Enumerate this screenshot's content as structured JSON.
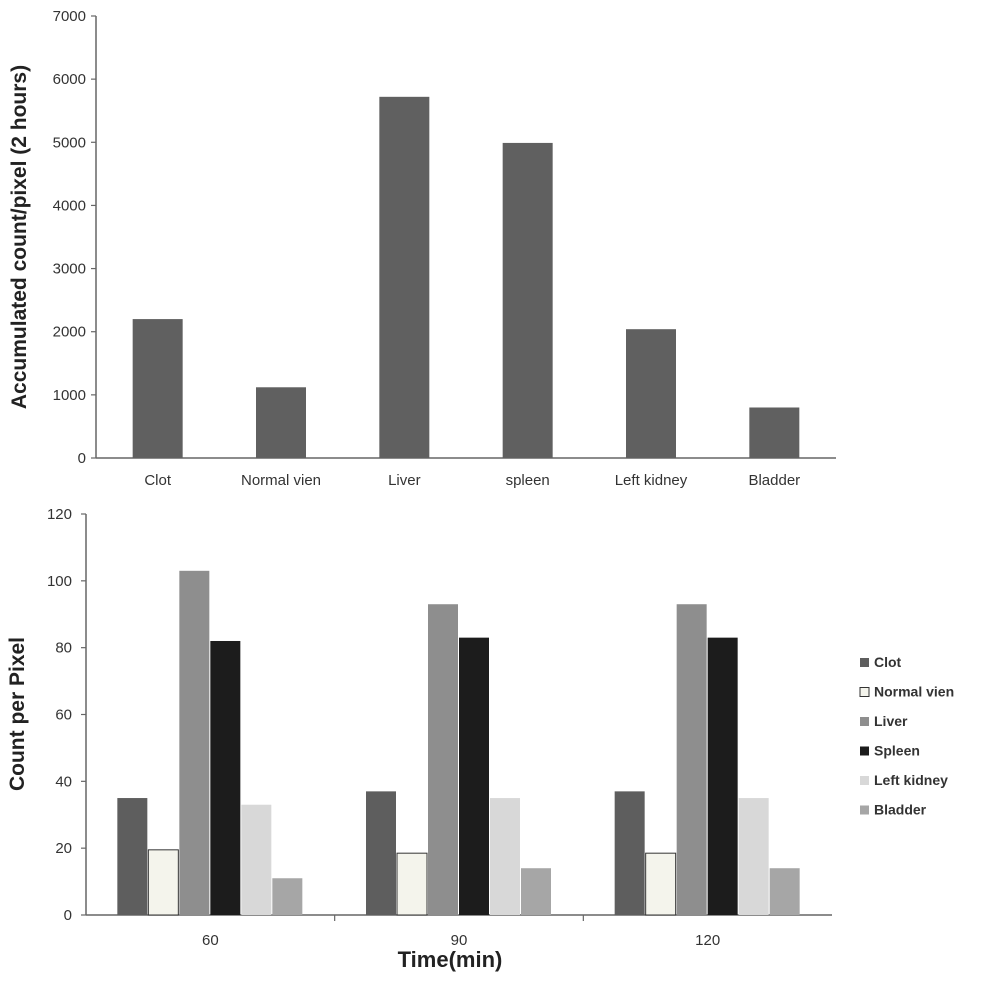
{
  "chart_data": [
    {
      "type": "bar",
      "categories": [
        "Clot",
        "Normal vien",
        "Liver",
        "spleen",
        "Left kidney",
        "Bladder"
      ],
      "values": [
        2200,
        1120,
        5720,
        4990,
        2040,
        800
      ],
      "ylabel": "Accumulated count/pixel (2 hours)",
      "xlabel": "",
      "ylim": [
        0,
        7000
      ],
      "yticks": [
        "0",
        "1000",
        "2000",
        "3000",
        "4000",
        "5000",
        "6000",
        "7000"
      ],
      "bar_color": "#606060",
      "grid": false
    },
    {
      "type": "bar",
      "categories": [
        "60",
        "90",
        "120"
      ],
      "xlabel": "Time(min)",
      "ylabel": "Count per Pixel",
      "ylim": [
        0,
        120
      ],
      "yticks": [
        "0",
        "20",
        "40",
        "60",
        "80",
        "100",
        "120"
      ],
      "legend_position": "right",
      "grid": false,
      "series": [
        {
          "name": "Clot",
          "values": [
            35,
            37,
            37
          ],
          "color": "#5e5e5e"
        },
        {
          "name": "Normal vien",
          "values": [
            19.5,
            18.5,
            18.5
          ],
          "color": "#f4f4ec"
        },
        {
          "name": "Liver",
          "values": [
            103,
            93,
            93
          ],
          "color": "#8e8e8e"
        },
        {
          "name": "Spleen",
          "values": [
            82,
            83,
            83
          ],
          "color": "#1c1c1c"
        },
        {
          "name": "Left kidney",
          "values": [
            33,
            35,
            35
          ],
          "color": "#d8d8d8"
        },
        {
          "name": "Bladder",
          "values": [
            11,
            14,
            14
          ],
          "color": "#a6a6a6"
        }
      ]
    }
  ]
}
